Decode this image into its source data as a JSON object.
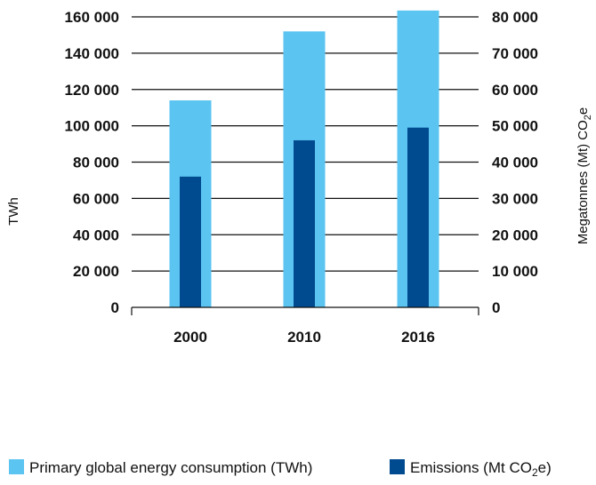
{
  "chart_data": {
    "type": "bar",
    "categories": [
      "2000",
      "2010",
      "2016"
    ],
    "series": [
      {
        "name": "Primary global energy consumption (TWh)",
        "axis": "left",
        "color": "#5bc4f1",
        "values": [
          114000,
          152000,
          163500
        ]
      },
      {
        "name": "Emissions (Mt CO₂e)",
        "axis": "right",
        "color": "#004a8f",
        "values": [
          36000,
          46000,
          49500
        ]
      }
    ],
    "left_axis": {
      "label": "TWh",
      "range": [
        0,
        160000
      ],
      "ticks": [
        0,
        20000,
        40000,
        60000,
        80000,
        100000,
        120000,
        140000,
        160000
      ],
      "tick_labels": [
        "0",
        "20 000",
        "40 000",
        "60 000",
        "80 000",
        "100 000",
        "120 000",
        "140 000",
        "160 000"
      ]
    },
    "right_axis": {
      "label_main": "Megatonnes (Mt) CO",
      "label_sub": "2",
      "label_tail": "e",
      "range": [
        0,
        80000
      ],
      "tick_labels": [
        "0",
        "10 000",
        "20 000",
        "30 000",
        "40 000",
        "50 000",
        "60 000",
        "70 000",
        "80 000"
      ]
    },
    "grid": true,
    "legend": {
      "position": "bottom",
      "items": [
        {
          "text": "Primary global energy consumption (TWh)",
          "color": "#5bc4f1"
        },
        {
          "text_main": "Emissions (Mt CO",
          "text_sub": "2",
          "text_tail": "e)",
          "color": "#004a8f"
        }
      ]
    }
  }
}
